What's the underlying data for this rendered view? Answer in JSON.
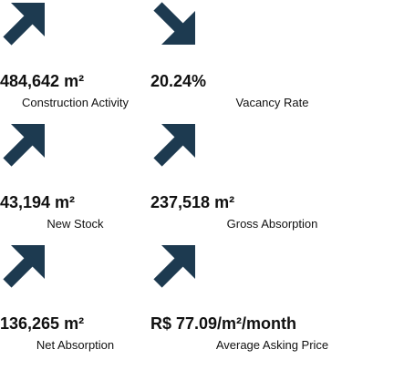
{
  "items": [
    {
      "value": "484,642 m²",
      "label": "Construction Activity",
      "direction": "up"
    },
    {
      "value": "20.24%",
      "label": "Vacancy Rate",
      "direction": "down"
    },
    {
      "value": "43,194 m²",
      "label": "New Stock",
      "direction": "up"
    },
    {
      "value": "237,518 m²",
      "label": "Gross Absorption",
      "direction": "up"
    },
    {
      "value": "136,265 m²",
      "label": "Net Absorption",
      "direction": "up"
    },
    {
      "value": "R$ 77.09/m²/month",
      "label": "Average Asking Price",
      "direction": "up"
    }
  ]
}
